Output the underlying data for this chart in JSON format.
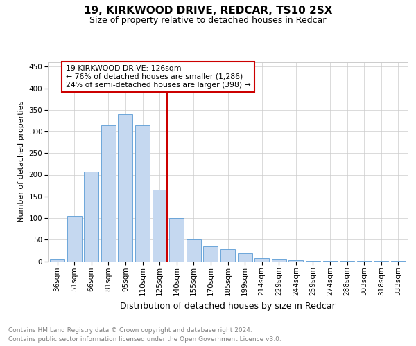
{
  "title1": "19, KIRKWOOD DRIVE, REDCAR, TS10 2SX",
  "title2": "Size of property relative to detached houses in Redcar",
  "xlabel": "Distribution of detached houses by size in Redcar",
  "ylabel": "Number of detached properties",
  "footer": "Contains HM Land Registry data © Crown copyright and database right 2024.\nContains public sector information licensed under the Open Government Licence v3.0.",
  "categories": [
    "36sqm",
    "51sqm",
    "66sqm",
    "81sqm",
    "95sqm",
    "110sqm",
    "125sqm",
    "140sqm",
    "155sqm",
    "170sqm",
    "185sqm",
    "199sqm",
    "214sqm",
    "229sqm",
    "244sqm",
    "259sqm",
    "274sqm",
    "288sqm",
    "303sqm",
    "318sqm",
    "333sqm"
  ],
  "values": [
    5,
    105,
    208,
    315,
    340,
    315,
    165,
    100,
    50,
    35,
    28,
    18,
    8,
    5,
    2,
    1,
    0.5,
    0.5,
    0.5,
    0.5,
    0.5
  ],
  "bar_color": "#c5d8f0",
  "bar_edge_color": "#5b9bd5",
  "vline_x_index": 6,
  "vline_color": "#cc0000",
  "annotation_text": "19 KIRKWOOD DRIVE: 126sqm\n← 76% of detached houses are smaller (1,286)\n24% of semi-detached houses are larger (398) →",
  "annotation_box_color": "#ffffff",
  "annotation_box_edge": "#cc0000",
  "ylim": [
    0,
    460
  ],
  "yticks": [
    0,
    50,
    100,
    150,
    200,
    250,
    300,
    350,
    400,
    450
  ],
  "bg_color": "#ffffff",
  "grid_color": "#cccccc",
  "title1_fontsize": 11,
  "title2_fontsize": 9,
  "xlabel_fontsize": 9,
  "ylabel_fontsize": 8,
  "tick_fontsize": 7.5,
  "footer_fontsize": 6.5,
  "footer_color": "#808080"
}
